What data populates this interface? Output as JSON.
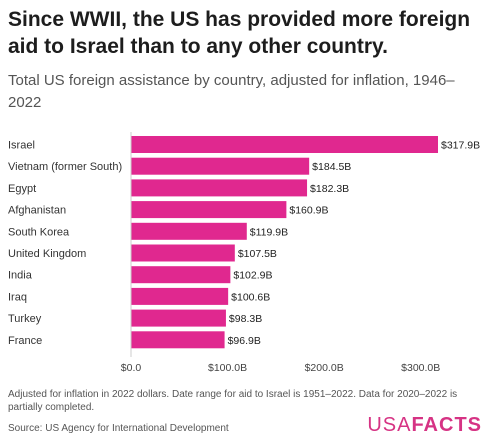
{
  "title": "Since WWII, the US has provided more foreign aid to Israel than to any other country.",
  "subtitle": "Total US foreign assistance by country, adjusted for inflation, 1946–2022",
  "note": "Adjusted for inflation in 2022 dollars. Date range for aid to Israel is 1951–2022. Data for 2020–2022 is partially completed.",
  "source": "Source: US Agency for International Development",
  "logo": {
    "usa": "USA",
    "facts": "FACTS"
  },
  "colors": {
    "bar": "#e0288f",
    "axis": "#cccccc"
  },
  "chart_data": {
    "type": "bar",
    "orientation": "horizontal",
    "categories": [
      "Israel",
      "Vietnam (former South)",
      "Egypt",
      "Afghanistan",
      "South Korea",
      "United Kingdom",
      "India",
      "Iraq",
      "Turkey",
      "France"
    ],
    "values": [
      317.9,
      184.5,
      182.3,
      160.9,
      119.9,
      107.5,
      102.9,
      100.6,
      98.3,
      96.9
    ],
    "value_labels": [
      "$317.9B",
      "$184.5B",
      "$182.3B",
      "$160.9B",
      "$119.9B",
      "$107.5B",
      "$102.9B",
      "$100.6B",
      "$98.3B",
      "$96.9B"
    ],
    "xticks": [
      0,
      100,
      200,
      300
    ],
    "xtick_labels": [
      "$0.0",
      "$100.0B",
      "$200.0B",
      "$300.0B"
    ],
    "xlim": [
      0,
      317.9
    ],
    "grid": false,
    "legend": "none"
  }
}
